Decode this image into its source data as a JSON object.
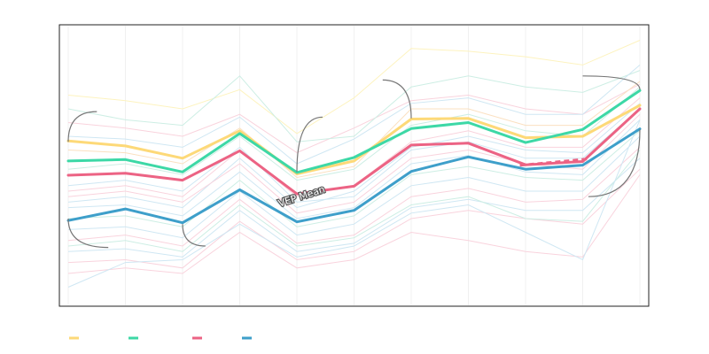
{
  "chart_data": {
    "type": "line",
    "title": "",
    "xlabel": "",
    "ylabel": "",
    "xlim": [
      0,
      10
    ],
    "ylim": [
      0,
      100
    ],
    "grid": true,
    "legend_position": "bottom-left",
    "x": [
      0,
      1,
      2,
      3,
      4,
      5,
      6,
      7,
      8,
      9,
      10
    ],
    "series": [
      {
        "values": [
          58.3,
          56.5,
          52.0,
          62.0,
          46.3,
          51.0,
          66.3,
          66.5,
          59.5,
          60.0,
          71.3
        ],
        "color": "#fdd978"
      },
      {
        "values": [
          51.0,
          51.5,
          47.0,
          61.0,
          46.8,
          52.3,
          62.8,
          65.0,
          57.7,
          62.5,
          76.7
        ],
        "color": "#3dd8a6"
      },
      {
        "values": [
          45.8,
          46.5,
          44.0,
          54.7,
          39.0,
          41.8,
          56.8,
          57.5,
          49.6,
          50.8,
          70.0
        ],
        "color": "#ec6384"
      },
      {
        "values": [
          29.3,
          33.5,
          28.5,
          40.5,
          28.8,
          33.0,
          47.2,
          52.5,
          48.0,
          49.5,
          62.7
        ],
        "color": "#3e9fca"
      }
    ],
    "dashed_segment": {
      "series_index": 2,
      "x_from": 7.9,
      "x_to": 9.1
    },
    "annotations": [
      {
        "text": "VEP Mean",
        "x": 4.1,
        "y": 37.0,
        "angle": -18
      }
    ],
    "background_series": [
      {
        "values": [
          75,
          73,
          70,
          77,
          61,
          74,
          92,
          91,
          89,
          86,
          95
        ],
        "color": "#fdf3bf"
      },
      {
        "values": [
          65,
          63,
          60,
          68,
          54,
          63,
          73,
          75,
          70,
          68,
          79
        ],
        "color": "#f9d3dd"
      },
      {
        "values": [
          70,
          66,
          64,
          82,
          58,
          60,
          78,
          82,
          78,
          76,
          84
        ],
        "color": "#cdeee4"
      },
      {
        "values": [
          60,
          59,
          56,
          67,
          50,
          59,
          72,
          74,
          68,
          68,
          86
        ],
        "color": "#cfe7f3"
      },
      {
        "values": [
          55,
          54,
          50,
          63,
          45,
          49,
          70,
          70,
          64,
          64,
          80
        ],
        "color": "#fbe0c0"
      },
      {
        "values": [
          48,
          50,
          46,
          60,
          44,
          48,
          64,
          68,
          62,
          60,
          78
        ],
        "color": "#cdeee4"
      },
      {
        "values": [
          40,
          42,
          38,
          55,
          38,
          42,
          58,
          62,
          56,
          56,
          74
        ],
        "color": "#f9d3dd"
      },
      {
        "values": [
          36,
          38,
          34,
          52,
          34,
          40,
          56,
          60,
          55,
          54,
          72
        ],
        "color": "#cfe7f3"
      },
      {
        "values": [
          42,
          44,
          40,
          56,
          36,
          38,
          55,
          58,
          52,
          52,
          70
        ],
        "color": "#cfe7f3"
      },
      {
        "values": [
          38,
          40,
          36,
          50,
          32,
          36,
          52,
          55,
          50,
          48,
          68
        ],
        "color": "#f9d3dd"
      },
      {
        "values": [
          34,
          35,
          31,
          47,
          30,
          34,
          50,
          53,
          47,
          46,
          66
        ],
        "color": "#cfe7f3"
      },
      {
        "values": [
          30,
          31,
          27,
          44,
          27,
          31,
          46,
          49,
          45,
          44,
          62
        ],
        "color": "#cdeee4"
      },
      {
        "values": [
          26,
          27,
          23,
          40,
          24,
          28,
          42,
          45,
          40,
          40,
          60
        ],
        "color": "#cfe7f3"
      },
      {
        "values": [
          22,
          24,
          20,
          37,
          21,
          24,
          38,
          41,
          36,
          37,
          56
        ],
        "color": "#f9d3dd"
      },
      {
        "values": [
          18,
          19,
          16,
          33,
          18,
          21,
          34,
          37,
          33,
          33,
          52
        ],
        "color": "#cfe7f3"
      },
      {
        "values": [
          14,
          15,
          12,
          29,
          15,
          18,
          30,
          33,
          30,
          28,
          48
        ],
        "color": "#f9d3dd"
      },
      {
        "values": [
          20,
          22,
          18,
          35,
          20,
          23,
          35,
          38,
          30,
          29,
          55
        ],
        "color": "#cdeee4"
      },
      {
        "values": [
          10,
          12,
          10,
          25,
          12,
          15,
          25,
          22,
          18,
          16,
          46
        ],
        "color": "#f9d3dd"
      },
      {
        "values": [
          5,
          14,
          15,
          28,
          16,
          20,
          32,
          35,
          25,
          15,
          66
        ],
        "color": "#cfe7f3"
      }
    ],
    "callouts": [
      {
        "x_from": 0.0,
        "y_from": 58.0,
        "x_to": 0.5,
        "y_to": 69.0
      },
      {
        "x_from": 0.0,
        "y_from": 30.0,
        "x_to": 0.7,
        "y_to": 19.5
      },
      {
        "x_from": 2.0,
        "y_from": 28.0,
        "x_to": 2.4,
        "y_to": 20.0
      },
      {
        "x_from": 4.0,
        "y_from": 47.0,
        "x_to": 4.45,
        "y_to": 67.0
      },
      {
        "x_from": 6.0,
        "y_from": 66.5,
        "x_to": 5.5,
        "y_to": 80.5
      },
      {
        "x_from": 10.0,
        "y_from": 77.0,
        "x_to": 9.0,
        "y_to": 82.0
      },
      {
        "x_from": 10.0,
        "y_from": 62.5,
        "x_to": 9.1,
        "y_to": 38.0
      }
    ]
  }
}
